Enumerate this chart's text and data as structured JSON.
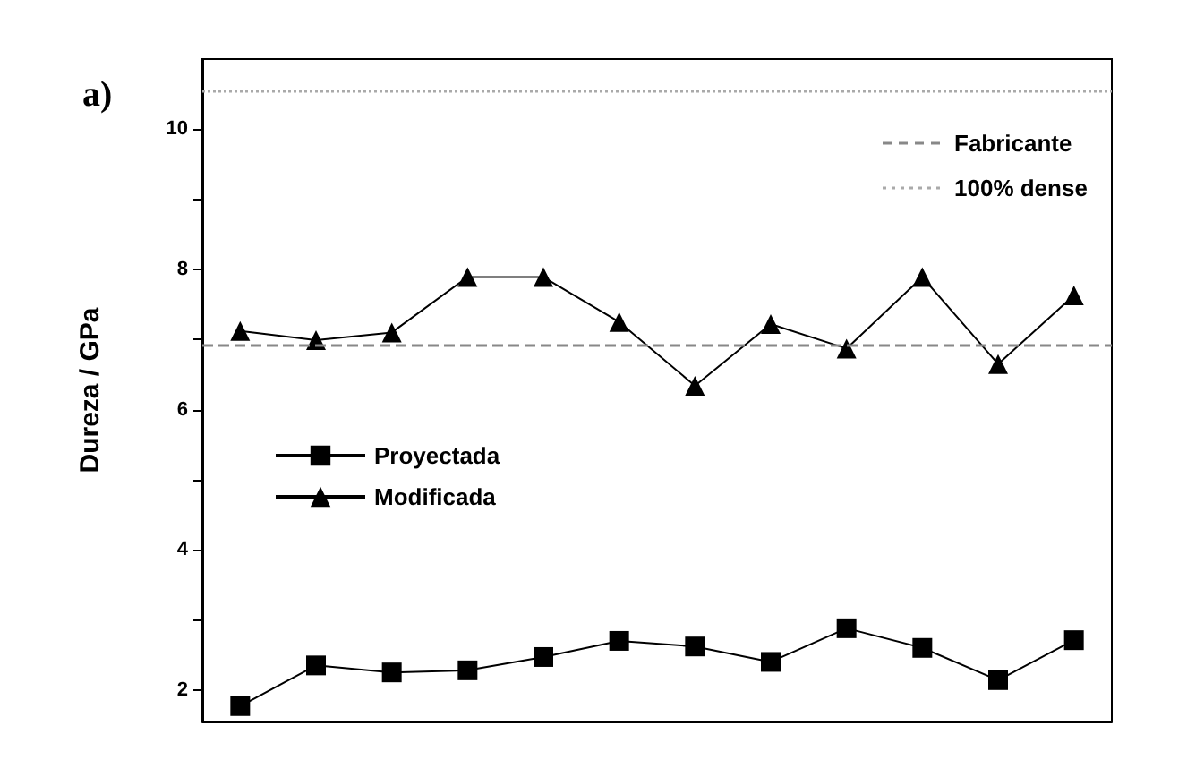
{
  "chart_data": {
    "type": "line",
    "ylabel": "Dureza / GPa",
    "annotations": [
      "a)"
    ],
    "categories": [
      null,
      null,
      null,
      null,
      null,
      null,
      null,
      null,
      null,
      null,
      null,
      null
    ],
    "series": [
      {
        "name": "Proyectada",
        "color": "#000000",
        "marker": "square",
        "values": [
          1.77,
          2.35,
          2.25,
          2.28,
          2.47,
          2.7,
          2.62,
          2.4,
          2.88,
          2.6,
          2.14,
          2.71
        ]
      },
      {
        "name": "Modificada",
        "color": "#000000",
        "marker": "triangle",
        "values": [
          7.12,
          6.99,
          7.1,
          7.89,
          7.89,
          7.25,
          6.34,
          7.22,
          6.87,
          7.89,
          6.65,
          7.63
        ]
      }
    ],
    "ylim": [
      1.55,
      11
    ],
    "yticks": [
      2,
      {
        "value": 3,
        "label": null
      },
      4,
      {
        "value": 5,
        "label": null
      },
      6,
      {
        "value": 7,
        "label": null
      },
      8,
      {
        "value": 9,
        "label": null
      },
      10
    ],
    "ref_lines": [
      {
        "axis": "y",
        "value": 6.91,
        "label": "Fabricante",
        "color": "#888888",
        "line_style": "dashed"
      },
      {
        "axis": "y",
        "value": 10.55,
        "label": "100% dense",
        "color": "#aaaaaa",
        "line_style": "dotted"
      }
    ],
    "legend": "left",
    "grid": false,
    "line_style": "solid"
  }
}
